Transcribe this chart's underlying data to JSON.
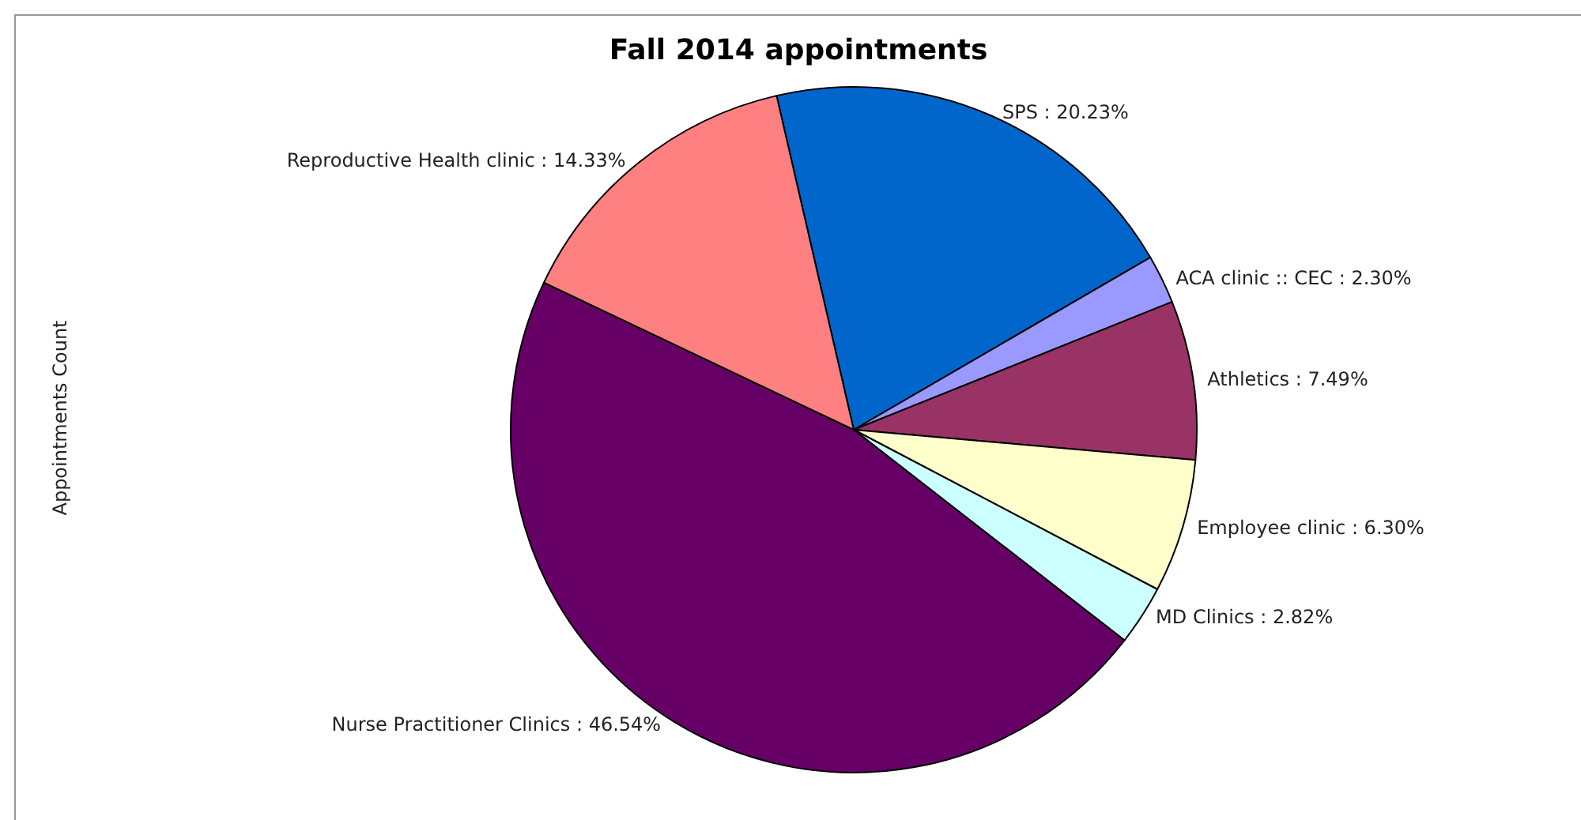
{
  "chart_data": {
    "type": "pie",
    "title": "Fall 2014 appointments",
    "ylabel": "Appointments Count",
    "categories": [
      "SPS",
      "ACA clinic :: CEC",
      "Athletics",
      "Employee clinic",
      "MD Clinics",
      "Nurse Practitioner Clinics",
      "Reproductive Health clinic"
    ],
    "values": [
      20.23,
      2.3,
      7.49,
      6.3,
      2.82,
      46.54,
      14.33
    ],
    "colors": [
      "#0066cc",
      "#9999ff",
      "#993366",
      "#ffffcc",
      "#ccffff",
      "#660066",
      "#ff8080"
    ],
    "value_labels": [
      "20.23%",
      "2.30%",
      "7.49%",
      "6.30%",
      "2.82%",
      "46.54%",
      "14.33%"
    ],
    "legend": false
  }
}
